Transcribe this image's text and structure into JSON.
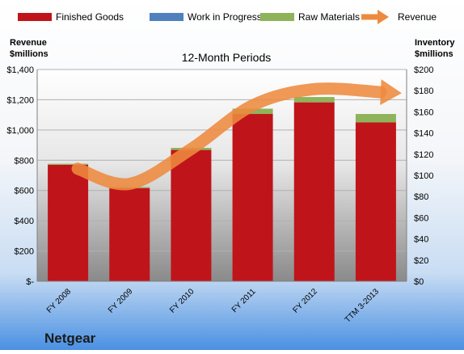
{
  "company": "Netgear",
  "chart_data": {
    "type": "bar",
    "title": "12-Month Periods",
    "categories": [
      "FY 2008",
      "FY 2009",
      "FY 2010",
      "FY 2011",
      "FY 2012",
      "TTM 3-2013"
    ],
    "stacked": true,
    "legend": [
      {
        "name": "Finished Goods",
        "color": "#c0141b",
        "kind": "box"
      },
      {
        "name": "Work in Progress",
        "color": "#4f81bd",
        "kind": "box"
      },
      {
        "name": "Raw Materials",
        "color": "#8fb35a",
        "kind": "box"
      },
      {
        "name": "Revenue",
        "color": "#ee8a3f",
        "kind": "arrow"
      }
    ],
    "legend_position": "top",
    "series": [
      {
        "name": "Finished Goods",
        "axis": "right",
        "color": "#c0141b",
        "values": [
          110,
          88,
          124,
          158,
          169,
          150
        ]
      },
      {
        "name": "Work in Progress",
        "axis": "right",
        "color": "#4f81bd",
        "values": [
          0,
          0,
          0,
          0,
          0,
          0
        ]
      },
      {
        "name": "Raw Materials",
        "axis": "right",
        "color": "#8fb35a",
        "values": [
          1,
          1,
          2,
          5,
          5,
          8
        ]
      },
      {
        "name": "Revenue",
        "axis": "left",
        "color": "#ee8a3f",
        "style": "arrow",
        "values": [
          744,
          644,
          874,
          1163,
          1270,
          1250
        ]
      }
    ],
    "left_axis": {
      "title_lines": [
        "Revenue",
        "$millions"
      ],
      "ylim": [
        0,
        1400
      ],
      "ticks": [
        "$-",
        "$200",
        "$400",
        "$600",
        "$800",
        "$1,000",
        "$1,200",
        "$1,400"
      ]
    },
    "right_axis": {
      "title_lines": [
        "Inventory",
        "$millions"
      ],
      "ylim": [
        0,
        200
      ],
      "ticks": [
        "$0",
        "$20",
        "$40",
        "$60",
        "$80",
        "$100",
        "$120",
        "$140",
        "$160",
        "$180",
        "$200"
      ]
    },
    "grid": true
  }
}
